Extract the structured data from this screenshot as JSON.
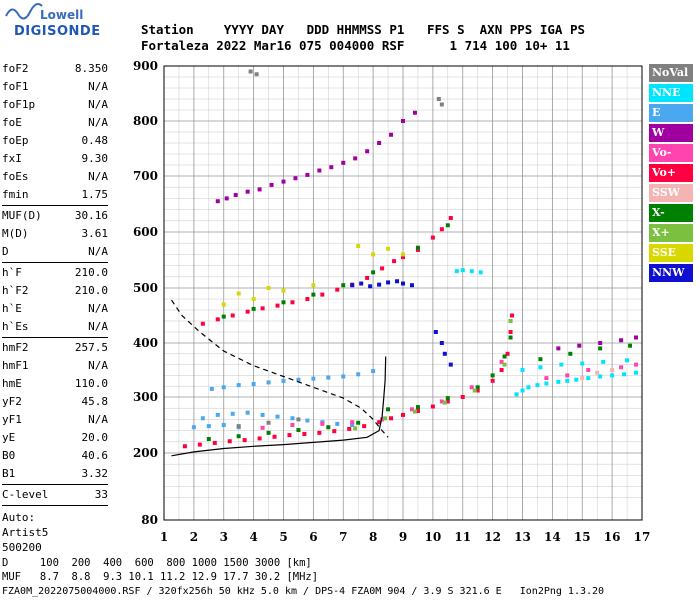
{
  "logo": {
    "line1": "Lowell",
    "line2": "DIGISONDE"
  },
  "header": {
    "labels_row": "Station    YYYY DAY   DDD HHMMSS P1   FFS S  AXN PPS IGA PS",
    "values_row": "Fortaleza 2022 Mar16 075 004000 RSF      1 714 100 10+ 11"
  },
  "left_panel": {
    "group1": [
      {
        "k": "foF2",
        "v": "8.350"
      },
      {
        "k": "foF1",
        "v": "N/A"
      },
      {
        "k": "foF1p",
        "v": "N/A"
      },
      {
        "k": "foE",
        "v": "N/A"
      },
      {
        "k": "foEp",
        "v": "0.48"
      },
      {
        "k": "fxI",
        "v": "9.30"
      },
      {
        "k": "foEs",
        "v": "N/A"
      },
      {
        "k": "fmin",
        "v": "1.75"
      }
    ],
    "group2": [
      {
        "k": "MUF(D)",
        "v": "30.16"
      },
      {
        "k": "M(D)",
        "v": "3.61"
      },
      {
        "k": "D",
        "v": "N/A"
      }
    ],
    "group3": [
      {
        "k": "h`F",
        "v": "210.0"
      },
      {
        "k": "h`F2",
        "v": "210.0"
      },
      {
        "k": "h`E",
        "v": "N/A"
      },
      {
        "k": "h`Es",
        "v": "N/A"
      }
    ],
    "group4": [
      {
        "k": "hmF2",
        "v": "257.5"
      },
      {
        "k": "hmF1",
        "v": "N/A"
      },
      {
        "k": "hmE",
        "v": "110.0"
      },
      {
        "k": "yF2",
        "v": "45.8"
      },
      {
        "k": "yF1",
        "v": "N/A"
      },
      {
        "k": "yE",
        "v": "20.0"
      },
      {
        "k": "B0",
        "v": "40.6"
      },
      {
        "k": "B1",
        "v": "3.32"
      }
    ],
    "group5": [
      {
        "k": "C-level",
        "v": "33"
      }
    ],
    "free_lines": [
      "Auto:",
      "Artist5",
      "500200"
    ]
  },
  "legend": [
    {
      "label": "NoVal",
      "color": "#808080"
    },
    {
      "label": "NNE",
      "color": "#00e5ff"
    },
    {
      "label": "E",
      "color": "#4aa8f0"
    },
    {
      "label": "W",
      "color": "#a000a0"
    },
    {
      "label": "Vo-",
      "color": "#ff44b0"
    },
    {
      "label": "Vo+",
      "color": "#ff0040"
    },
    {
      "label": "SSW",
      "color": "#f4b4b4"
    },
    {
      "label": "X-",
      "color": "#008000"
    },
    {
      "label": "X+",
      "color": "#7cc040"
    },
    {
      "label": "SSE",
      "color": "#d8d800"
    },
    {
      "label": "NNW",
      "color": "#1010d0"
    }
  ],
  "footer": {
    "d_row": "D     100  200  400  600  800 1000 1500 3000 [km]",
    "muf_row": "MUF   8.7  8.8  9.3 10.1 11.2 12.9 17.7 30.2 [MHz]",
    "info_row": "FZA0M_2022075004000.RSF / 320fx256h 50 kHz 5.0 km / DPS-4 FZA0M 904 / 3.9 S 321.6 E   Ion2Png 1.3.20"
  },
  "chart_data": {
    "type": "scatter",
    "x_ticks": [
      "1",
      "2",
      "3",
      "4",
      "5",
      "6",
      "7",
      "8",
      "9",
      "10",
      "11",
      "12",
      "13",
      "14",
      "15",
      "16",
      "17"
    ],
    "y_ticks": [
      "80",
      "200",
      "300",
      "400",
      "500",
      "600",
      "700",
      "800",
      "900"
    ],
    "xlim": [
      1,
      17
    ],
    "ylim": [
      80,
      900
    ],
    "y_scale": "nonuniform-piecewise (reciprocal-like, as printed ticks)",
    "grid": true,
    "legend_position": "right",
    "series": [
      {
        "name": "Vo+",
        "color": "#ff0040",
        "points": [
          [
            1.7,
            212
          ],
          [
            2.2,
            215
          ],
          [
            2.7,
            218
          ],
          [
            3.2,
            221
          ],
          [
            3.7,
            223
          ],
          [
            4.2,
            226
          ],
          [
            4.7,
            229
          ],
          [
            5.2,
            232
          ],
          [
            5.7,
            234
          ],
          [
            6.2,
            236
          ],
          [
            6.7,
            239
          ],
          [
            7.2,
            243
          ],
          [
            7.7,
            248
          ],
          [
            8.2,
            255
          ],
          [
            8.6,
            262
          ],
          [
            9.0,
            268
          ],
          [
            9.5,
            275
          ],
          [
            10.0,
            283
          ],
          [
            10.5,
            292
          ],
          [
            11.0,
            300
          ],
          [
            11.5,
            312
          ],
          [
            12.0,
            330
          ],
          [
            12.3,
            350
          ],
          [
            12.5,
            380
          ],
          [
            12.6,
            420
          ],
          [
            12.65,
            450
          ],
          [
            2.3,
            435
          ],
          [
            2.8,
            443
          ],
          [
            3.3,
            450
          ],
          [
            3.8,
            457
          ],
          [
            4.3,
            463
          ],
          [
            4.8,
            468
          ],
          [
            5.3,
            474
          ],
          [
            5.8,
            480
          ],
          [
            6.3,
            488
          ],
          [
            6.8,
            497
          ],
          [
            7.3,
            506
          ],
          [
            7.8,
            518
          ],
          [
            8.3,
            535
          ],
          [
            8.7,
            548
          ],
          [
            9.0,
            555
          ],
          [
            9.5,
            568
          ],
          [
            10.0,
            590
          ],
          [
            10.3,
            605
          ],
          [
            10.6,
            625
          ]
        ]
      },
      {
        "name": "E",
        "color": "#4aa8f0",
        "points": [
          [
            2.6,
            315
          ],
          [
            3.0,
            318
          ],
          [
            3.5,
            322
          ],
          [
            4.0,
            324
          ],
          [
            4.5,
            327
          ],
          [
            5.0,
            330
          ],
          [
            5.5,
            332
          ],
          [
            6.0,
            334
          ],
          [
            6.5,
            336
          ],
          [
            7.0,
            338
          ],
          [
            7.5,
            342
          ],
          [
            8.0,
            348
          ],
          [
            2.3,
            262
          ],
          [
            2.8,
            268
          ],
          [
            3.3,
            270
          ],
          [
            3.8,
            272
          ],
          [
            4.3,
            268
          ],
          [
            4.8,
            265
          ],
          [
            5.3,
            262
          ],
          [
            5.8,
            258
          ],
          [
            6.3,
            255
          ],
          [
            6.8,
            252
          ],
          [
            7.3,
            250
          ],
          [
            2.0,
            246
          ],
          [
            2.5,
            248
          ],
          [
            3.0,
            250
          ],
          [
            3.5,
            246
          ]
        ]
      },
      {
        "name": "NNE",
        "color": "#00e5ff",
        "points": [
          [
            12.8,
            305
          ],
          [
            13.0,
            312
          ],
          [
            13.2,
            318
          ],
          [
            13.5,
            322
          ],
          [
            13.8,
            325
          ],
          [
            14.2,
            328
          ],
          [
            14.5,
            330
          ],
          [
            14.8,
            332
          ],
          [
            15.2,
            335
          ],
          [
            15.6,
            338
          ],
          [
            16.0,
            340
          ],
          [
            16.4,
            342
          ],
          [
            16.8,
            345
          ],
          [
            13.0,
            350
          ],
          [
            13.6,
            355
          ],
          [
            14.3,
            360
          ],
          [
            15.0,
            362
          ],
          [
            15.7,
            365
          ],
          [
            16.5,
            368
          ],
          [
            10.8,
            530
          ],
          [
            11.0,
            532
          ],
          [
            11.3,
            530
          ],
          [
            11.6,
            528
          ]
        ]
      },
      {
        "name": "X-",
        "color": "#008000",
        "points": [
          [
            2.5,
            225
          ],
          [
            3.5,
            230
          ],
          [
            4.5,
            236
          ],
          [
            5.5,
            241
          ],
          [
            6.5,
            246
          ],
          [
            7.5,
            254
          ],
          [
            8.5,
            278
          ],
          [
            9.5,
            282
          ],
          [
            10.5,
            298
          ],
          [
            11.5,
            318
          ],
          [
            12.0,
            340
          ],
          [
            12.4,
            375
          ],
          [
            12.6,
            410
          ],
          [
            3.0,
            448
          ],
          [
            4.0,
            462
          ],
          [
            5.0,
            474
          ],
          [
            6.0,
            488
          ],
          [
            7.0,
            505
          ],
          [
            8.0,
            528
          ],
          [
            9.5,
            572
          ],
          [
            10.5,
            612
          ],
          [
            13.6,
            370
          ],
          [
            14.6,
            380
          ],
          [
            15.6,
            390
          ],
          [
            16.6,
            395
          ]
        ]
      },
      {
        "name": "Vo-",
        "color": "#ff44b0",
        "points": [
          [
            4.3,
            245
          ],
          [
            5.3,
            250
          ],
          [
            6.3,
            252
          ],
          [
            7.3,
            255
          ],
          [
            8.3,
            260
          ],
          [
            9.3,
            278
          ],
          [
            10.3,
            292
          ],
          [
            11.3,
            318
          ],
          [
            12.3,
            365
          ],
          [
            13.8,
            335
          ],
          [
            14.5,
            340
          ],
          [
            15.2,
            350
          ],
          [
            16.3,
            355
          ],
          [
            16.8,
            360
          ]
        ]
      },
      {
        "name": "W",
        "color": "#a000a0",
        "points": [
          [
            2.8,
            655
          ],
          [
            3.1,
            660
          ],
          [
            3.4,
            666
          ],
          [
            3.8,
            672
          ],
          [
            4.2,
            676
          ],
          [
            4.6,
            684
          ],
          [
            5.0,
            690
          ],
          [
            5.4,
            696
          ],
          [
            5.8,
            702
          ],
          [
            6.2,
            710
          ],
          [
            6.6,
            716
          ],
          [
            7.0,
            724
          ],
          [
            7.4,
            732
          ],
          [
            7.8,
            745
          ],
          [
            8.2,
            760
          ],
          [
            8.6,
            775
          ],
          [
            9.0,
            800
          ],
          [
            9.4,
            815
          ],
          [
            14.2,
            390
          ],
          [
            14.9,
            395
          ],
          [
            15.6,
            400
          ],
          [
            16.3,
            405
          ],
          [
            16.8,
            410
          ]
        ]
      },
      {
        "name": "X+",
        "color": "#7cc040",
        "points": [
          [
            7.4,
            244
          ],
          [
            8.4,
            262
          ],
          [
            9.4,
            274
          ],
          [
            10.4,
            290
          ],
          [
            11.4,
            312
          ],
          [
            12.4,
            360
          ],
          [
            12.6,
            440
          ]
        ]
      },
      {
        "name": "SSE",
        "color": "#d8d800",
        "points": [
          [
            3.0,
            470
          ],
          [
            3.5,
            490
          ],
          [
            4.0,
            480
          ],
          [
            4.5,
            500
          ],
          [
            5.0,
            495
          ],
          [
            6.0,
            505
          ],
          [
            7.5,
            575
          ],
          [
            8.0,
            560
          ],
          [
            8.5,
            570
          ],
          [
            9.0,
            560
          ]
        ]
      },
      {
        "name": "NNW",
        "color": "#1010d0",
        "points": [
          [
            7.3,
            505
          ],
          [
            7.6,
            508
          ],
          [
            7.9,
            503
          ],
          [
            8.2,
            506
          ],
          [
            8.5,
            510
          ],
          [
            8.8,
            512
          ],
          [
            9.0,
            508
          ],
          [
            9.3,
            505
          ],
          [
            10.1,
            420
          ],
          [
            10.3,
            400
          ],
          [
            10.4,
            380
          ],
          [
            10.6,
            360
          ]
        ]
      },
      {
        "name": "SSW",
        "color": "#f4b4b4",
        "points": [
          [
            15.0,
            335
          ],
          [
            15.5,
            345
          ],
          [
            16.0,
            350
          ]
        ]
      },
      {
        "name": "NoVal",
        "color": "#808080",
        "points": [
          [
            3.9,
            890
          ],
          [
            4.1,
            885
          ],
          [
            10.2,
            840
          ],
          [
            10.3,
            830
          ],
          [
            3.5,
            248
          ],
          [
            4.5,
            254
          ],
          [
            5.5,
            260
          ]
        ]
      }
    ],
    "curves": [
      {
        "name": "profile",
        "style": "solid",
        "points": [
          [
            1.25,
            195
          ],
          [
            2,
            202
          ],
          [
            3,
            208
          ],
          [
            4,
            212
          ],
          [
            5,
            215
          ],
          [
            6,
            219
          ],
          [
            7,
            223
          ],
          [
            7.8,
            228
          ],
          [
            8.2,
            240
          ],
          [
            8.3,
            265
          ],
          [
            8.35,
            295
          ],
          [
            8.4,
            330
          ],
          [
            8.42,
            375
          ]
        ]
      },
      {
        "name": "virtual-height",
        "style": "dashed",
        "points": [
          [
            1.25,
            478
          ],
          [
            1.6,
            450
          ],
          [
            2.2,
            420
          ],
          [
            3,
            385
          ],
          [
            4,
            358
          ],
          [
            5,
            338
          ],
          [
            6,
            318
          ],
          [
            7,
            298
          ],
          [
            7.6,
            280
          ],
          [
            8.0,
            260
          ],
          [
            8.3,
            240
          ],
          [
            8.5,
            228
          ]
        ]
      }
    ]
  }
}
